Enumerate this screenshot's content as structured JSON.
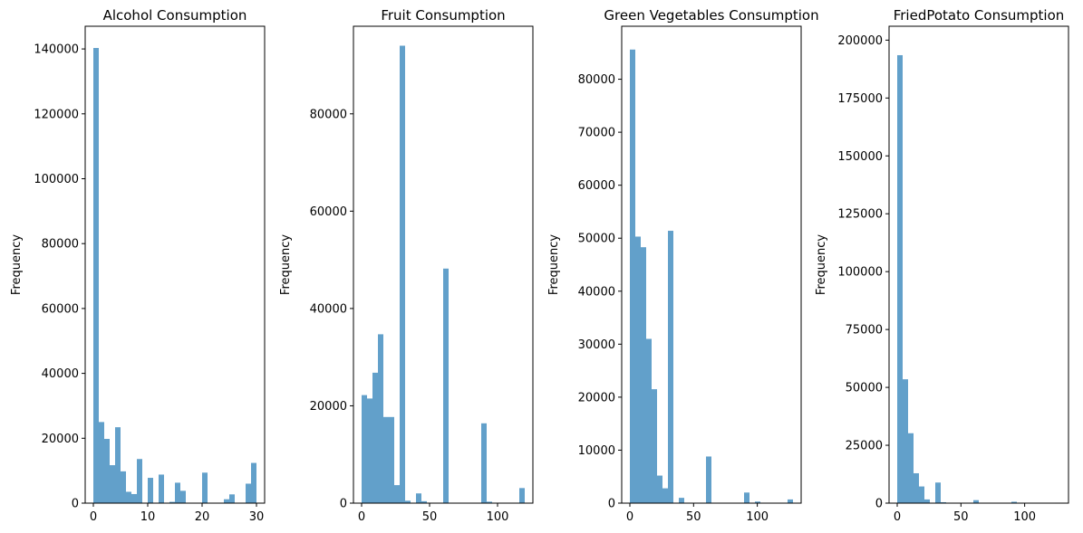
{
  "colors": {
    "bar": "#1f77b4",
    "bar_alpha": 0.7,
    "axis": "#000000",
    "background": "#ffffff"
  },
  "chart_data": [
    {
      "type": "bar",
      "title": "Alcohol Consumption",
      "xlabel": "",
      "ylabel": "Frequency",
      "xlim": [
        -1.5,
        31.5
      ],
      "ylim": [
        0,
        147000
      ],
      "xticks": [
        0,
        10,
        20,
        30
      ],
      "yticks": [
        0,
        20000,
        40000,
        60000,
        80000,
        100000,
        120000,
        140000
      ],
      "bins": {
        "start": 0,
        "end": 30,
        "count": 30
      },
      "values": [
        140300,
        25000,
        19800,
        11700,
        23400,
        9800,
        3500,
        2800,
        13600,
        0,
        7800,
        0,
        8800,
        0,
        400,
        6300,
        3800,
        0,
        0,
        0,
        9400,
        0,
        0,
        0,
        1200,
        2700,
        0,
        0,
        6000,
        12400
      ]
    },
    {
      "type": "bar",
      "title": "Fruit Consumption",
      "xlabel": "",
      "ylabel": "Frequency",
      "xlim": [
        -6,
        126
      ],
      "ylim": [
        0,
        98000
      ],
      "xticks": [
        0,
        50,
        100
      ],
      "yticks": [
        0,
        20000,
        40000,
        60000,
        80000
      ],
      "bins": {
        "start": 0,
        "end": 120,
        "count": 30
      },
      "values": [
        22200,
        21500,
        26800,
        34700,
        17700,
        17700,
        3700,
        94000,
        500,
        0,
        2000,
        400,
        0,
        0,
        0,
        48200,
        0,
        0,
        0,
        0,
        0,
        0,
        16400,
        300,
        0,
        0,
        0,
        0,
        0,
        3100
      ]
    },
    {
      "type": "bar",
      "title": "Green Vegetables Consumption",
      "xlabel": "",
      "ylabel": "Frequency",
      "xlim": [
        -6.4,
        134.4
      ],
      "ylim": [
        0,
        90000
      ],
      "xticks": [
        0,
        50,
        100
      ],
      "yticks": [
        0,
        10000,
        20000,
        30000,
        40000,
        50000,
        60000,
        70000,
        80000
      ],
      "bins": {
        "start": 0,
        "end": 128,
        "count": 30
      },
      "values": [
        85600,
        50300,
        48300,
        31000,
        21500,
        5200,
        2800,
        51400,
        0,
        1000,
        0,
        0,
        0,
        0,
        8800,
        0,
        0,
        0,
        0,
        0,
        0,
        2000,
        0,
        300,
        0,
        0,
        0,
        0,
        0,
        700
      ]
    },
    {
      "type": "bar",
      "title": "FriedPotato Consumption",
      "xlabel": "",
      "ylabel": "Frequency",
      "xlim": [
        -6.4,
        134.4
      ],
      "ylim": [
        0,
        206000
      ],
      "xticks": [
        0,
        50,
        100
      ],
      "yticks": [
        0,
        25000,
        50000,
        75000,
        100000,
        125000,
        150000,
        175000,
        200000
      ],
      "bins": {
        "start": 0,
        "end": 128,
        "count": 30
      },
      "values": [
        193500,
        53500,
        30200,
        12900,
        7200,
        1600,
        0,
        8900,
        400,
        0,
        0,
        0,
        0,
        0,
        1300,
        0,
        0,
        0,
        0,
        0,
        0,
        600,
        0,
        0,
        0,
        0,
        0,
        0,
        0,
        200
      ]
    }
  ]
}
